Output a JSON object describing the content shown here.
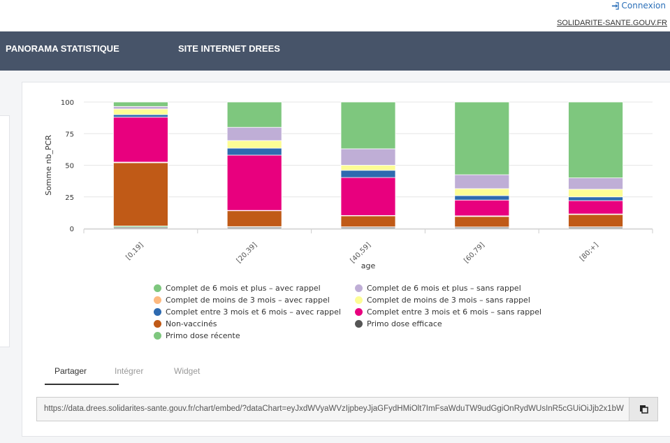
{
  "header": {
    "login_label": "Connexion",
    "site_link": "SOLIDARITE-SANTE.GOUV.FR"
  },
  "nav": {
    "items": [
      "PANORAMA STATISTIQUE",
      "SITE INTERNET DREES"
    ]
  },
  "tabs": {
    "items": [
      "Partager",
      "Intégrer",
      "Widget"
    ],
    "active": "Partager"
  },
  "share": {
    "url": "https://data.drees.solidarites-sante.gouv.fr/chart/embed/?dataChart=eyJxdWVyaWVzIjpbeyJjaGFydHMiOlt7ImFsaWduTW9udGgiOnRydWUsInR5cGUiOiJjb2x1bW4iLCJmdW5jIjoiU1VNIiwieUF4aXMiOiJuYl9QQ1IifV0sInhBeGlzIjoiYWdlIn1dfQ"
  },
  "chart_data": {
    "type": "bar",
    "stacked": true,
    "normalized_percent": true,
    "xlabel": "age",
    "ylabel": "Somme nb_PCR",
    "ylim": [
      0,
      100
    ],
    "yticks": [
      0,
      25,
      50,
      75,
      100
    ],
    "categories": [
      "[0,19]",
      "[20,39]",
      "[40,59]",
      "[60,79]",
      "[80;+]"
    ],
    "series": [
      {
        "name": "Primo dose efficace",
        "color": "#555555",
        "values": [
          1,
          1,
          1,
          1,
          1
        ]
      },
      {
        "name": "Primo dose récente",
        "color": "#7ec77e",
        "values": [
          1,
          0.5,
          0.3,
          0.2,
          0.3
        ]
      },
      {
        "name": "Non-vaccinés",
        "color": "#c05a17",
        "values": [
          50,
          12.5,
          8.7,
          8.3,
          9.7
        ]
      },
      {
        "name": "Complet de moins de 3 mois - avec rappel",
        "color": "#fdb97f",
        "values": [
          0.5,
          0.3,
          0.3,
          0.5,
          0.5
        ]
      },
      {
        "name": "Complet entre 3 mois et 6 mois - sans rappel",
        "color": "#e8007e",
        "values": [
          35.5,
          43.7,
          30,
          12.5,
          10.5
        ]
      },
      {
        "name": "Complet entre 3 mois et 6 mois - avec rappel",
        "color": "#2e6ab0",
        "values": [
          2,
          5.5,
          5.7,
          3.5,
          3
        ]
      },
      {
        "name": "Complet de moins de 3 mois - sans rappel",
        "color": "#fdfd95",
        "values": [
          4.5,
          6,
          4,
          5.5,
          6
        ]
      },
      {
        "name": "Complet de 6 mois et plus - sans rappel",
        "color": "#bfaed6",
        "values": [
          2,
          10.5,
          13,
          11,
          9
        ]
      },
      {
        "name": "Complet de 6 mois et plus - avec rappel",
        "color": "#7ec77e",
        "values": [
          3.5,
          20,
          37,
          57.5,
          60
        ]
      }
    ],
    "legend": [
      {
        "name": "Complet de 6 mois et plus - avec rappel",
        "color": "#7ec77e"
      },
      {
        "name": "Complet de 6 mois et plus - sans rappel",
        "color": "#bfaed6"
      },
      {
        "name": "Complet de moins de 3 mois - avec rappel",
        "color": "#fdb97f"
      },
      {
        "name": "Complet de moins de 3 mois - sans rappel",
        "color": "#fdfd95"
      },
      {
        "name": "Complet entre 3 mois et 6 mois - avec rappel",
        "color": "#2e6ab0"
      },
      {
        "name": "Complet entre 3 mois et 6 mois - sans rappel",
        "color": "#e8007e"
      },
      {
        "name": "Non-vaccinés",
        "color": "#c05a17"
      },
      {
        "name": "Primo dose efficace",
        "color": "#555555"
      },
      {
        "name": "Primo dose récente",
        "color": "#7ec77e"
      }
    ]
  }
}
